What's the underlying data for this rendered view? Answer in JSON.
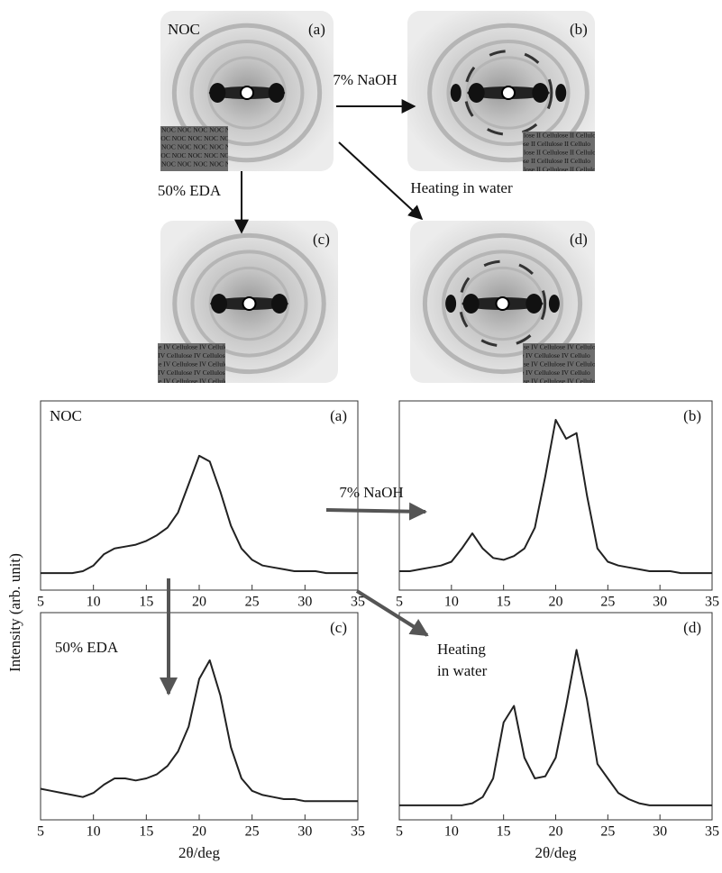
{
  "diffraction": {
    "panels": [
      {
        "label": "(a)",
        "name": "NOC",
        "watermark": "NOC NOC NOC NOC NOC"
      },
      {
        "label": "(b)",
        "watermark": "lose II Cellulose II Cellulo"
      },
      {
        "label": "(c)",
        "watermark": "e IV Cellulose IV Cellulose"
      },
      {
        "label": "(d)",
        "watermark": "se IV Cellulose IV Cellulo"
      }
    ],
    "arrows": [
      "7% NaOH",
      "50% EDA",
      "Heating in water"
    ]
  },
  "y_axis_label": "Intensity (arb. unit)",
  "xrd_arrows": {
    "naoh": "7% NaOH",
    "eda": "50% EDA",
    "heating": [
      "Heating",
      "in water"
    ]
  },
  "chart_data": [
    {
      "type": "line",
      "title": "NOC",
      "panel": "(a)",
      "color": "#222222",
      "x": [
        5,
        6,
        7,
        8,
        9,
        10,
        11,
        12,
        13,
        14,
        15,
        16,
        17,
        18,
        19,
        20,
        21,
        22,
        23,
        24,
        25,
        26,
        27,
        28,
        29,
        30,
        31,
        32,
        33,
        34,
        35
      ],
      "values": [
        0.09,
        0.09,
        0.09,
        0.09,
        0.1,
        0.13,
        0.19,
        0.22,
        0.23,
        0.24,
        0.26,
        0.29,
        0.33,
        0.41,
        0.56,
        0.71,
        0.68,
        0.52,
        0.34,
        0.22,
        0.16,
        0.13,
        0.12,
        0.11,
        0.1,
        0.1,
        0.1,
        0.09,
        0.09,
        0.09,
        0.09
      ],
      "xlim": [
        5,
        35
      ],
      "ylim": [
        0,
        1
      ],
      "xticks": [
        5,
        10,
        15,
        20,
        25,
        30,
        35
      ]
    },
    {
      "type": "line",
      "panel": "(b)",
      "color": "#222222",
      "x": [
        5,
        6,
        7,
        8,
        9,
        10,
        11,
        12,
        13,
        14,
        15,
        16,
        17,
        18,
        19,
        20,
        21,
        22,
        23,
        24,
        25,
        26,
        27,
        28,
        29,
        30,
        31,
        32,
        33,
        34,
        35
      ],
      "values": [
        0.1,
        0.1,
        0.11,
        0.12,
        0.13,
        0.15,
        0.22,
        0.3,
        0.22,
        0.17,
        0.16,
        0.18,
        0.22,
        0.33,
        0.6,
        0.9,
        0.8,
        0.83,
        0.5,
        0.22,
        0.15,
        0.13,
        0.12,
        0.11,
        0.1,
        0.1,
        0.1,
        0.09,
        0.09,
        0.09,
        0.09
      ],
      "xlim": [
        5,
        35
      ],
      "ylim": [
        0,
        1
      ],
      "xticks": [
        5,
        10,
        15,
        20,
        25,
        30,
        35
      ]
    },
    {
      "type": "line",
      "panel": "(c)",
      "xlabel": "2θ/deg",
      "color": "#222222",
      "x": [
        5,
        6,
        7,
        8,
        9,
        10,
        11,
        12,
        13,
        14,
        15,
        16,
        17,
        18,
        19,
        20,
        21,
        22,
        23,
        24,
        25,
        26,
        27,
        28,
        29,
        30,
        31,
        32,
        33,
        34,
        35
      ],
      "values": [
        0.15,
        0.14,
        0.13,
        0.12,
        0.11,
        0.13,
        0.17,
        0.2,
        0.2,
        0.19,
        0.2,
        0.22,
        0.26,
        0.33,
        0.45,
        0.68,
        0.77,
        0.6,
        0.35,
        0.2,
        0.14,
        0.12,
        0.11,
        0.1,
        0.1,
        0.09,
        0.09,
        0.09,
        0.09,
        0.09,
        0.09
      ],
      "xlim": [
        5,
        35
      ],
      "ylim": [
        0,
        1
      ],
      "xticks": [
        5,
        10,
        15,
        20,
        25,
        30,
        35
      ]
    },
    {
      "type": "line",
      "panel": "(d)",
      "xlabel": "2θ/deg",
      "color": "#222222",
      "x": [
        5,
        6,
        7,
        8,
        9,
        10,
        11,
        12,
        13,
        14,
        15,
        16,
        17,
        18,
        19,
        20,
        21,
        22,
        23,
        24,
        25,
        26,
        27,
        28,
        29,
        30,
        31,
        32,
        33,
        34,
        35
      ],
      "values": [
        0.07,
        0.07,
        0.07,
        0.07,
        0.07,
        0.07,
        0.07,
        0.08,
        0.11,
        0.2,
        0.47,
        0.55,
        0.3,
        0.2,
        0.21,
        0.3,
        0.55,
        0.82,
        0.58,
        0.27,
        0.2,
        0.13,
        0.1,
        0.08,
        0.07,
        0.07,
        0.07,
        0.07,
        0.07,
        0.07,
        0.07
      ],
      "xlim": [
        5,
        35
      ],
      "ylim": [
        0,
        1
      ],
      "xticks": [
        5,
        10,
        15,
        20,
        25,
        30,
        35
      ]
    }
  ]
}
